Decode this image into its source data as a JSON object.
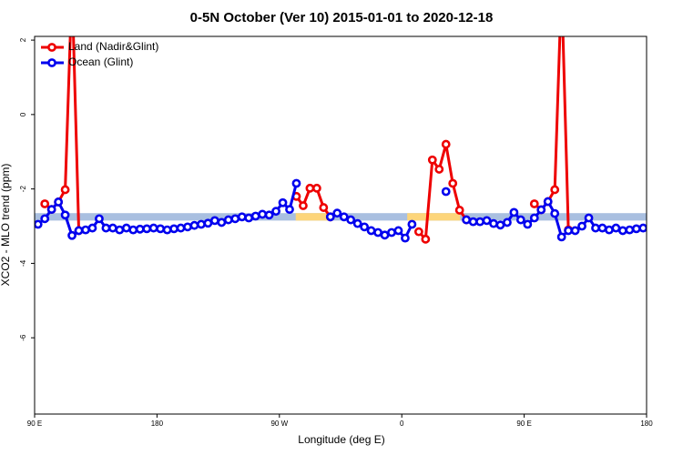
{
  "chart_data": {
    "type": "line",
    "title": "0-5N October (Ver 10)   2015-01-01 to 2020-12-18",
    "xlabel": "Longitude (deg E)",
    "ylabel": "XCO2 - MLO trend (ppm)",
    "xlim": [
      90,
      540
    ],
    "ylim": [
      -8.05,
      2.1
    ],
    "xticks": [
      {
        "value": 90,
        "label": "90 E"
      },
      180,
      {
        "value": 270,
        "label": "90 W"
      },
      {
        "value": 360,
        "label": "0"
      },
      {
        "value": 450,
        "label": "90 E"
      },
      {
        "value": 540,
        "label": "180"
      }
    ],
    "yticks": [
      2,
      0,
      -2,
      -4,
      -6
    ],
    "legend": "top-left",
    "band": {
      "range": [
        -2.85,
        -2.65
      ],
      "color": "#a9bfe0",
      "segments": [
        {
          "x": [
            282,
            309
          ],
          "color": "#fdd57a"
        },
        {
          "x": [
            364,
            403
          ],
          "color": "#fdd57a"
        }
      ]
    },
    "x": [
      92.5,
      97.5,
      102.5,
      107.5,
      112.5,
      117.5,
      122.5,
      127.5,
      132.5,
      137.5,
      142.5,
      147.5,
      152.5,
      157.5,
      162.5,
      167.5,
      172.5,
      177.5,
      182.5,
      187.5,
      192.5,
      197.5,
      202.5,
      207.5,
      212.5,
      217.5,
      222.5,
      227.5,
      232.5,
      237.5,
      242.5,
      247.5,
      252.5,
      257.5,
      262.5,
      267.5,
      272.5,
      277.5,
      282.5,
      287.5,
      292.5,
      297.5,
      302.5,
      307.5,
      312.5,
      317.5,
      322.5,
      327.5,
      332.5,
      337.5,
      342.5,
      347.5,
      352.5,
      357.5,
      362.5,
      367.5,
      372.5,
      377.5,
      382.5,
      387.5,
      392.5,
      397.5,
      402.5,
      407.5,
      412.5,
      417.5,
      422.5,
      427.5,
      432.5,
      437.5,
      442.5,
      447.5,
      452.5,
      457.5,
      462.5,
      467.5,
      472.5,
      477.5,
      482.5,
      487.5,
      492.5,
      497.5,
      502.5,
      507.5,
      512.5,
      517.5,
      522.5,
      527.5,
      532.5,
      537.5
    ],
    "series": [
      {
        "name": "Land (Nadir&Glint)",
        "color": "#ee0000",
        "values": [
          null,
          -2.4,
          -2.55,
          -2.35,
          -2.02,
          3.5,
          -3.12,
          null,
          null,
          null,
          null,
          null,
          null,
          null,
          null,
          null,
          null,
          null,
          null,
          null,
          null,
          null,
          null,
          null,
          null,
          null,
          null,
          null,
          null,
          null,
          null,
          null,
          null,
          null,
          null,
          null,
          null,
          null,
          -2.2,
          -2.45,
          -1.98,
          -1.98,
          -2.5,
          -2.75,
          null,
          null,
          null,
          null,
          null,
          null,
          null,
          null,
          null,
          null,
          null,
          null,
          -3.15,
          -3.35,
          -1.22,
          -1.47,
          -0.8,
          -1.85,
          -2.57,
          -2.83,
          null,
          null,
          null,
          null,
          null,
          null,
          null,
          null,
          null,
          -2.4,
          -2.56,
          -2.34,
          -2.02,
          3.5,
          -3.1,
          null,
          null,
          null,
          null,
          null,
          null,
          null,
          null,
          null,
          null,
          null
        ]
      },
      {
        "name": "Ocean (Glint)",
        "color": "#0000ee",
        "values": [
          -2.95,
          -2.8,
          -2.55,
          -2.35,
          -2.7,
          -3.25,
          -3.12,
          -3.1,
          -3.05,
          -2.8,
          -3.05,
          -3.05,
          -3.1,
          -3.05,
          -3.1,
          -3.08,
          -3.07,
          -3.05,
          -3.07,
          -3.1,
          -3.07,
          -3.05,
          -3.02,
          -2.98,
          -2.95,
          -2.92,
          -2.85,
          -2.9,
          -2.83,
          -2.8,
          -2.75,
          -2.78,
          -2.73,
          -2.68,
          -2.7,
          -2.6,
          -2.37,
          -2.55,
          -1.85,
          null,
          null,
          null,
          null,
          -2.75,
          -2.65,
          -2.75,
          -2.83,
          -2.93,
          -3.02,
          -3.12,
          -3.17,
          -3.24,
          -3.17,
          -3.12,
          -3.32,
          -2.95,
          null,
          null,
          null,
          null,
          -2.07,
          null,
          null,
          -2.83,
          -2.88,
          -2.88,
          -2.85,
          -2.93,
          -2.97,
          -2.9,
          -2.63,
          -2.83,
          -2.95,
          -2.78,
          -2.56,
          -2.34,
          -2.66,
          -3.29,
          -3.12,
          -3.12,
          -3.0,
          -2.78,
          -3.05,
          -3.05,
          -3.1,
          -3.05,
          -3.12,
          -3.1,
          -3.07,
          -3.05
        ]
      }
    ]
  }
}
